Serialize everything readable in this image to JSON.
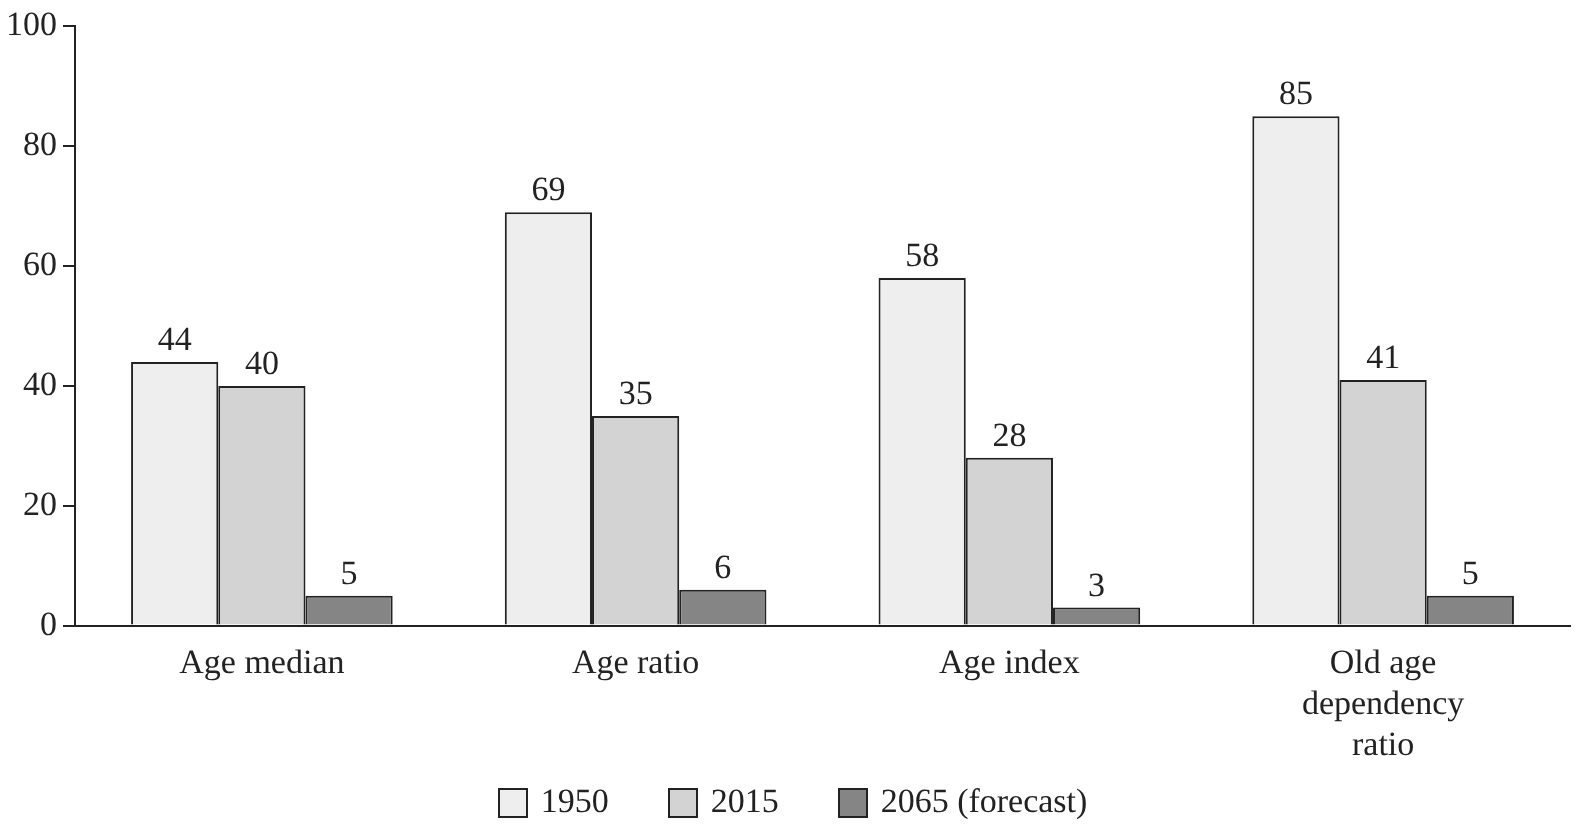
{
  "chart_data": {
    "type": "bar",
    "categories": [
      "Age median",
      "Age ratio",
      "Age index",
      "Old age dependency ratio"
    ],
    "series": [
      {
        "name": "1950",
        "color": "#eeeeee",
        "values": [
          44,
          69,
          58,
          85
        ]
      },
      {
        "name": "2015",
        "color": "#d3d3d3",
        "values": [
          40,
          35,
          28,
          41
        ]
      },
      {
        "name": "2065 (forecast)",
        "color": "#858585",
        "values": [
          5,
          6,
          3,
          5
        ]
      }
    ],
    "ylim": [
      0,
      100
    ],
    "yticks": [
      0,
      20,
      40,
      60,
      80,
      100
    ],
    "grid": false,
    "legend": "bottom",
    "data_labels": true
  }
}
